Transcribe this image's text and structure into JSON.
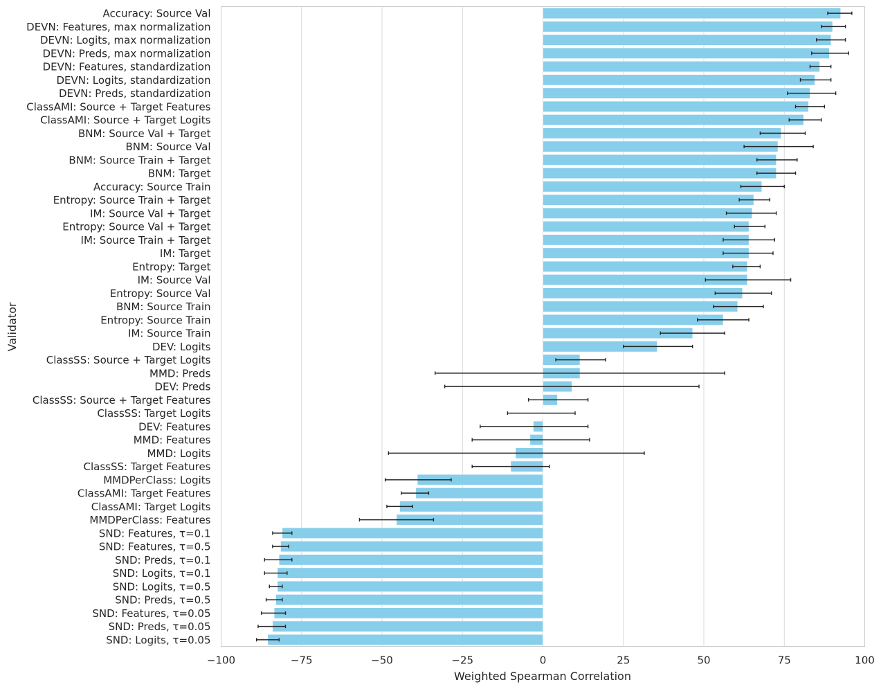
{
  "chart_data": {
    "type": "bar",
    "orientation": "horizontal",
    "xlabel": "Weighted Spearman Correlation",
    "ylabel": "Validator",
    "xlim": [
      -100,
      100
    ],
    "xticks": [
      -100,
      -75,
      -50,
      -25,
      0,
      25,
      50,
      75,
      100
    ],
    "xtick_labels": [
      "−100",
      "−75",
      "−50",
      "−25",
      "0",
      "25",
      "50",
      "75",
      "100"
    ],
    "grid": "vertical",
    "bar_color": "#87CEEB",
    "error_color": "#262626",
    "categories": [
      "Accuracy: Source Val",
      "DEVN: Features, max normalization",
      "DEVN: Logits, max normalization",
      "DEVN: Preds, max normalization",
      "DEVN: Features, standardization",
      "DEVN: Logits, standardization",
      "DEVN: Preds, standardization",
      "ClassAMI: Source + Target Features",
      "ClassAMI: Source + Target Logits",
      "BNM: Source Val + Target",
      "BNM: Source Val",
      "BNM: Source Train + Target",
      "BNM: Target",
      "Accuracy: Source Train",
      "Entropy: Source Train + Target",
      "IM: Source Val + Target",
      "Entropy: Source Val + Target",
      "IM: Source Train + Target",
      "IM: Target",
      "Entropy: Target",
      "IM: Source Val",
      "Entropy: Source Val",
      "BNM: Source Train",
      "Entropy: Source Train",
      "IM: Source Train",
      "DEV: Logits",
      "ClassSS: Source + Target Logits",
      "MMD: Preds",
      "DEV: Preds",
      "ClassSS: Source + Target Features",
      "ClassSS: Target Logits",
      "DEV: Features",
      "MMD: Features",
      "MMD: Logits",
      "ClassSS: Target Features",
      "MMDPerClass: Logits",
      "ClassAMI: Target Features",
      "ClassAMI: Target Logits",
      "MMDPerClass: Features",
      "SND: Features, τ=0.1",
      "SND: Features, τ=0.5",
      "SND: Preds, τ=0.1",
      "SND: Logits, τ=0.1",
      "SND: Logits, τ=0.5",
      "SND: Preds, τ=0.5",
      "SND: Features, τ=0.05",
      "SND: Preds, τ=0.05",
      "SND: Logits, τ=0.05"
    ],
    "values": [
      92.5,
      90.0,
      89.5,
      89.0,
      86.0,
      84.5,
      83.0,
      82.5,
      81.0,
      74.0,
      73.0,
      72.5,
      72.5,
      68.0,
      65.5,
      65.0,
      64.0,
      64.0,
      64.0,
      63.5,
      63.5,
      62.0,
      60.5,
      56.0,
      46.5,
      35.5,
      11.5,
      11.5,
      9.0,
      4.5,
      0.0,
      -3.0,
      -4.0,
      -8.5,
      -10.0,
      -39.0,
      -39.5,
      -44.5,
      -45.5,
      -81.0,
      -81.5,
      -82.0,
      -82.5,
      -82.5,
      -83.0,
      -83.5,
      -84.0,
      -85.5
    ],
    "error_low": [
      88.5,
      86.5,
      85.0,
      83.5,
      83.0,
      80.0,
      76.0,
      78.5,
      76.5,
      67.5,
      62.5,
      66.5,
      66.5,
      61.5,
      61.0,
      57.0,
      59.5,
      56.0,
      56.0,
      59.0,
      50.5,
      53.5,
      53.0,
      48.0,
      36.5,
      25.0,
      4.0,
      -33.5,
      -30.5,
      -4.5,
      -11.0,
      -19.5,
      -22.0,
      -48.0,
      -22.0,
      -49.0,
      -44.0,
      -48.5,
      -57.0,
      -84.0,
      -84.0,
      -86.5,
      -86.5,
      -85.0,
      -86.0,
      -87.5,
      -88.5,
      -89.0
    ],
    "error_high": [
      96.0,
      94.0,
      94.0,
      95.0,
      89.5,
      89.5,
      91.0,
      87.5,
      86.5,
      81.5,
      84.0,
      79.0,
      78.5,
      75.0,
      70.5,
      72.5,
      69.0,
      72.0,
      71.5,
      67.5,
      77.0,
      71.0,
      68.5,
      64.0,
      56.5,
      46.5,
      19.5,
      56.5,
      48.5,
      14.0,
      10.0,
      14.0,
      14.5,
      31.5,
      2.0,
      -28.5,
      -35.5,
      -40.5,
      -34.0,
      -78.0,
      -79.0,
      -78.0,
      -79.5,
      -81.0,
      -81.0,
      -80.0,
      -80.0,
      -82.0
    ]
  }
}
